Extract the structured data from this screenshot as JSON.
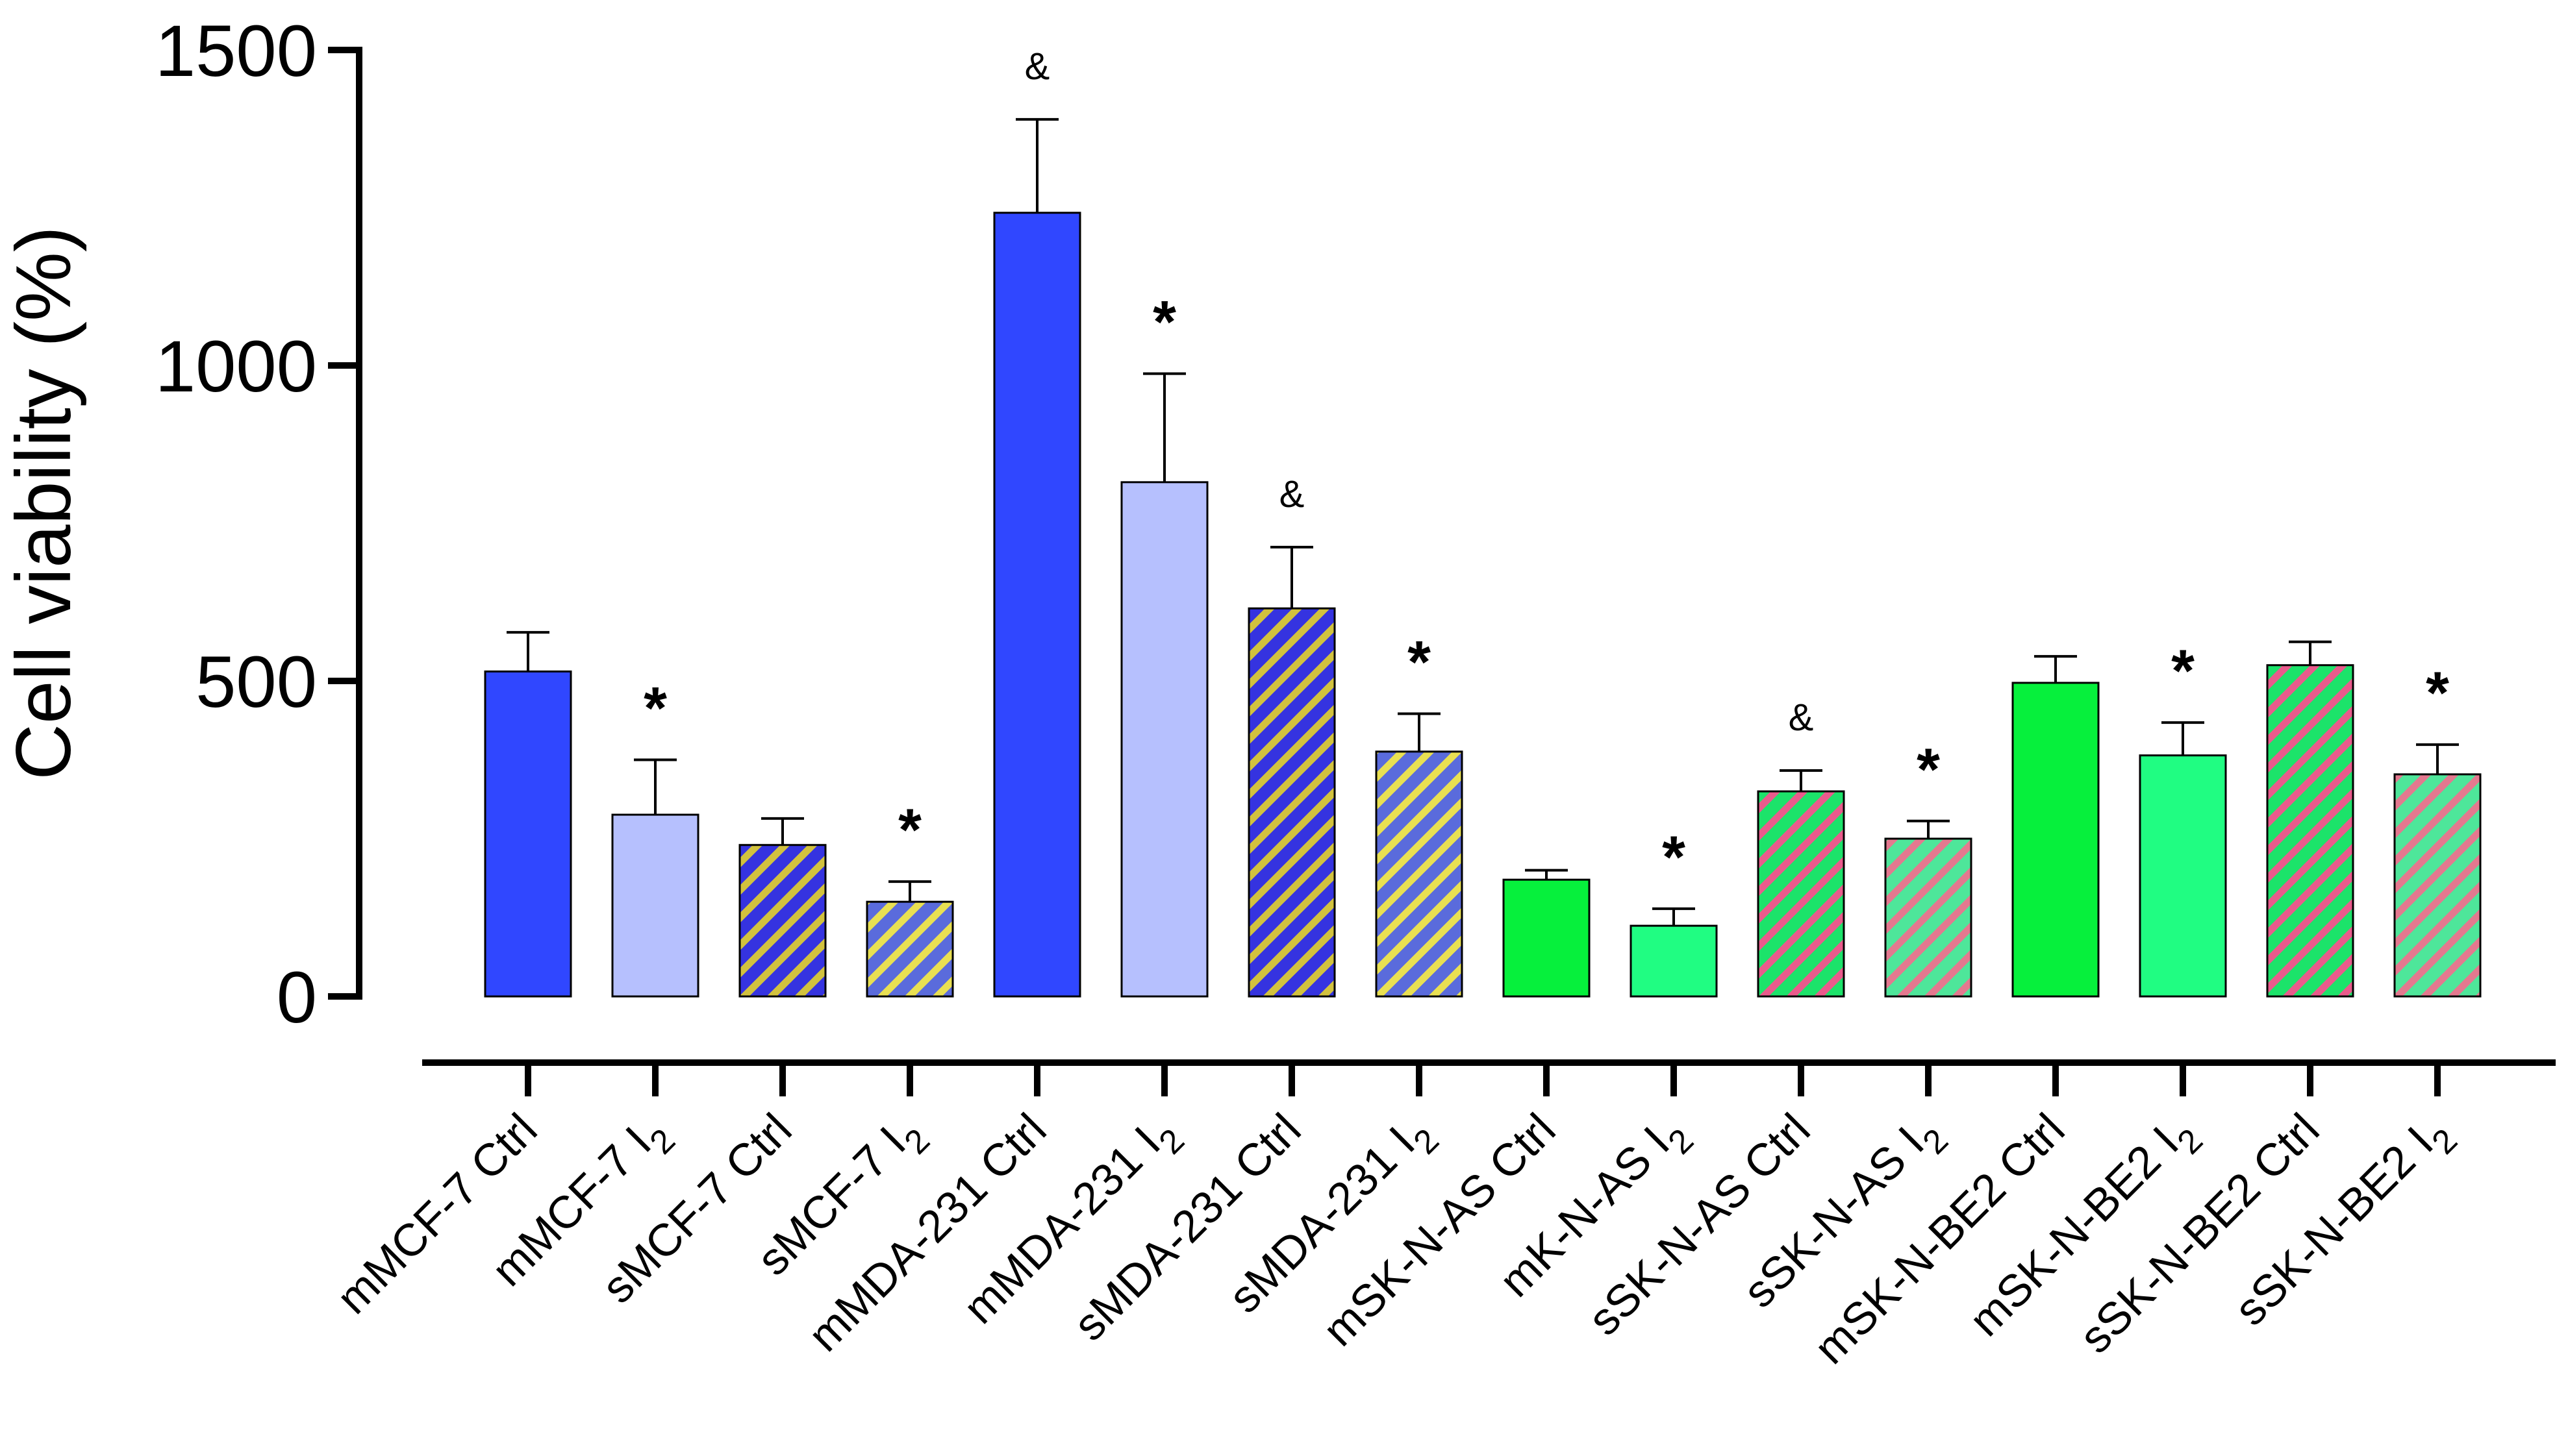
{
  "chart_data": {
    "type": "bar",
    "title": "",
    "ylabel": "Cell viability (%)",
    "xlabel": "",
    "ylim": [
      0,
      1500
    ],
    "yticks": [
      0,
      500,
      1000,
      1500
    ],
    "grid": false,
    "categories": [
      {
        "base": "mMCF-7 Ctrl",
        "sub": ""
      },
      {
        "base": "mMCF-7 I",
        "sub": "2"
      },
      {
        "base": "sMCF-7 Ctrl",
        "sub": ""
      },
      {
        "base": "sMCF-7 I",
        "sub": "2"
      },
      {
        "base": "mMDA-231 Ctrl",
        "sub": ""
      },
      {
        "base": "mMDA-231 I",
        "sub": "2"
      },
      {
        "base": "sMDA-231 Ctrl",
        "sub": ""
      },
      {
        "base": "sMDA-231 I",
        "sub": "2"
      },
      {
        "base": "mSK-N-AS Ctrl",
        "sub": ""
      },
      {
        "base": "mK-N-AS I",
        "sub": "2"
      },
      {
        "base": "sSK-N-AS Ctrl",
        "sub": ""
      },
      {
        "base": "sSK-N-AS I",
        "sub": "2"
      },
      {
        "base": "mSK-N-BE2 Ctrl",
        "sub": ""
      },
      {
        "base": "mSK-N-BE2 I",
        "sub": "2"
      },
      {
        "base": "sSK-N-BE2 Ctrl",
        "sub": ""
      },
      {
        "base": "sSK-N-BE2 I",
        "sub": "2"
      }
    ],
    "values": [
      515,
      288,
      240,
      150,
      1242,
      815,
      615,
      388,
      185,
      112,
      325,
      250,
      497,
      382,
      525,
      352
    ],
    "errors": [
      62,
      87,
      42,
      32,
      148,
      172,
      97,
      60,
      15,
      27,
      33,
      28,
      42,
      52,
      37,
      47
    ],
    "significance": [
      "",
      "*",
      "",
      "*",
      "&",
      "*",
      "&",
      "*",
      "",
      "*",
      "&",
      "*",
      "",
      "*",
      "",
      "*"
    ],
    "fills": [
      "solid",
      "solid",
      "hatch",
      "hatch",
      "solid",
      "solid",
      "hatch",
      "hatch",
      "solid",
      "solid",
      "hatch",
      "hatch",
      "solid",
      "solid",
      "hatch",
      "hatch"
    ],
    "colors": {
      "bars": [
        "#3047ff",
        "#b6c0fe",
        "#3533e0",
        "#5a6bdc",
        "#3047ff",
        "#b6c0fe",
        "#3533e0",
        "#5a6bdc",
        "#06f03c",
        "#20fd82",
        "#1ce36a",
        "#4ee69a",
        "#06f03c",
        "#20fd82",
        "#1ce36a",
        "#4ee69a"
      ],
      "hatch": [
        "",
        "",
        "#d2c23e",
        "#e9e052",
        "",
        "",
        "#d2c23e",
        "#e9e052",
        "",
        "",
        "#ea5a8c",
        "#e4788f",
        "",
        "",
        "#ea5a8c",
        "#e4788f"
      ]
    }
  }
}
